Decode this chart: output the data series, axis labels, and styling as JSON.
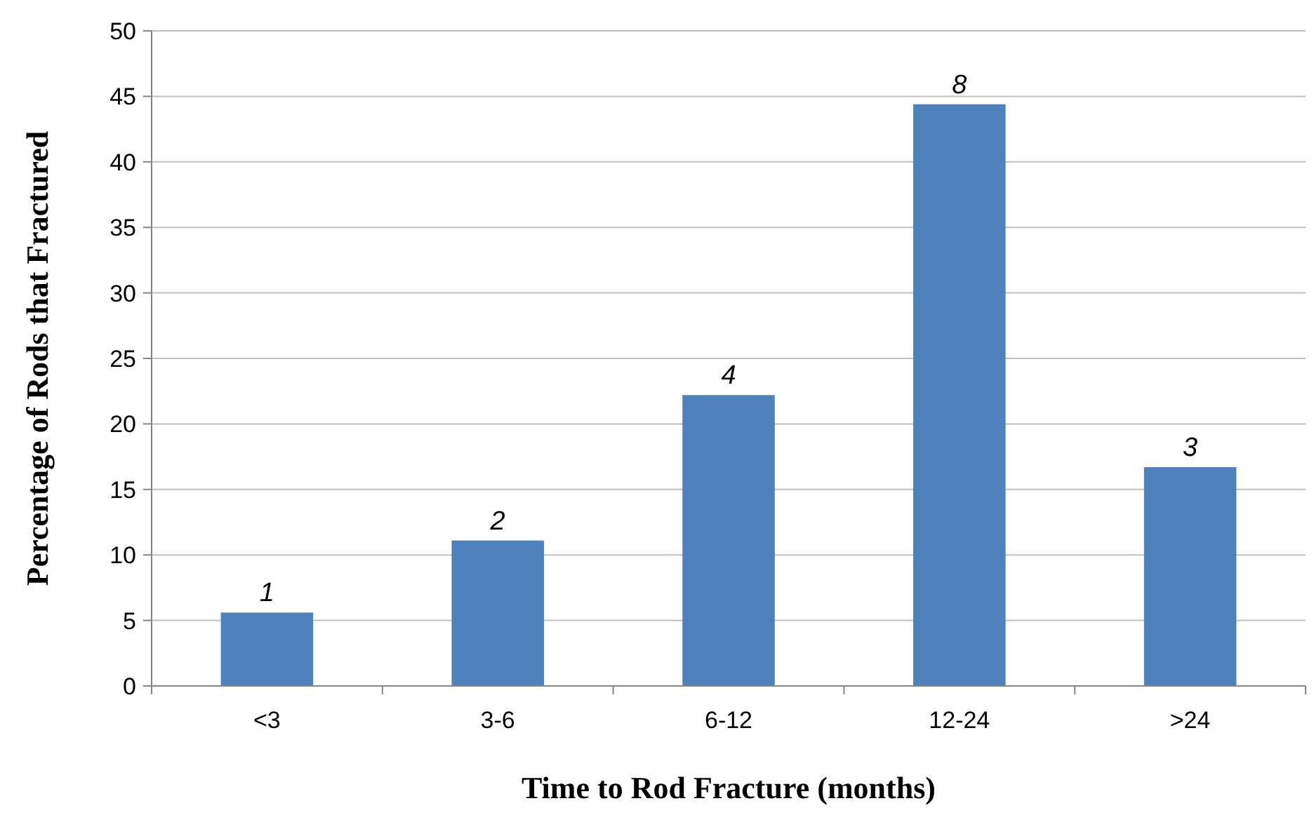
{
  "chart_data": {
    "type": "bar",
    "xlabel": "Time to Rod Fracture (months)",
    "ylabel": "Percentage of Rods that Fractured",
    "categories": [
      "<3",
      "3-6",
      "6-12",
      "12-24",
      ">24"
    ],
    "values": [
      5.6,
      11.1,
      22.2,
      44.4,
      16.7
    ],
    "annotations": [
      {
        "text": "1",
        "x": "<3",
        "y": 5.6
      },
      {
        "text": "2",
        "x": "3-6",
        "y": 11.1
      },
      {
        "text": "4",
        "x": "6-12",
        "y": 22.2
      },
      {
        "text": "8",
        "x": "12-24",
        "y": 44.4
      },
      {
        "text": "3",
        "x": ">24",
        "y": 16.7
      }
    ],
    "color": "#4f81bd",
    "ylim": [
      0,
      50
    ],
    "yticks": [
      0,
      5,
      10,
      15,
      20,
      25,
      30,
      35,
      40,
      45,
      50
    ],
    "grid": "y"
  }
}
